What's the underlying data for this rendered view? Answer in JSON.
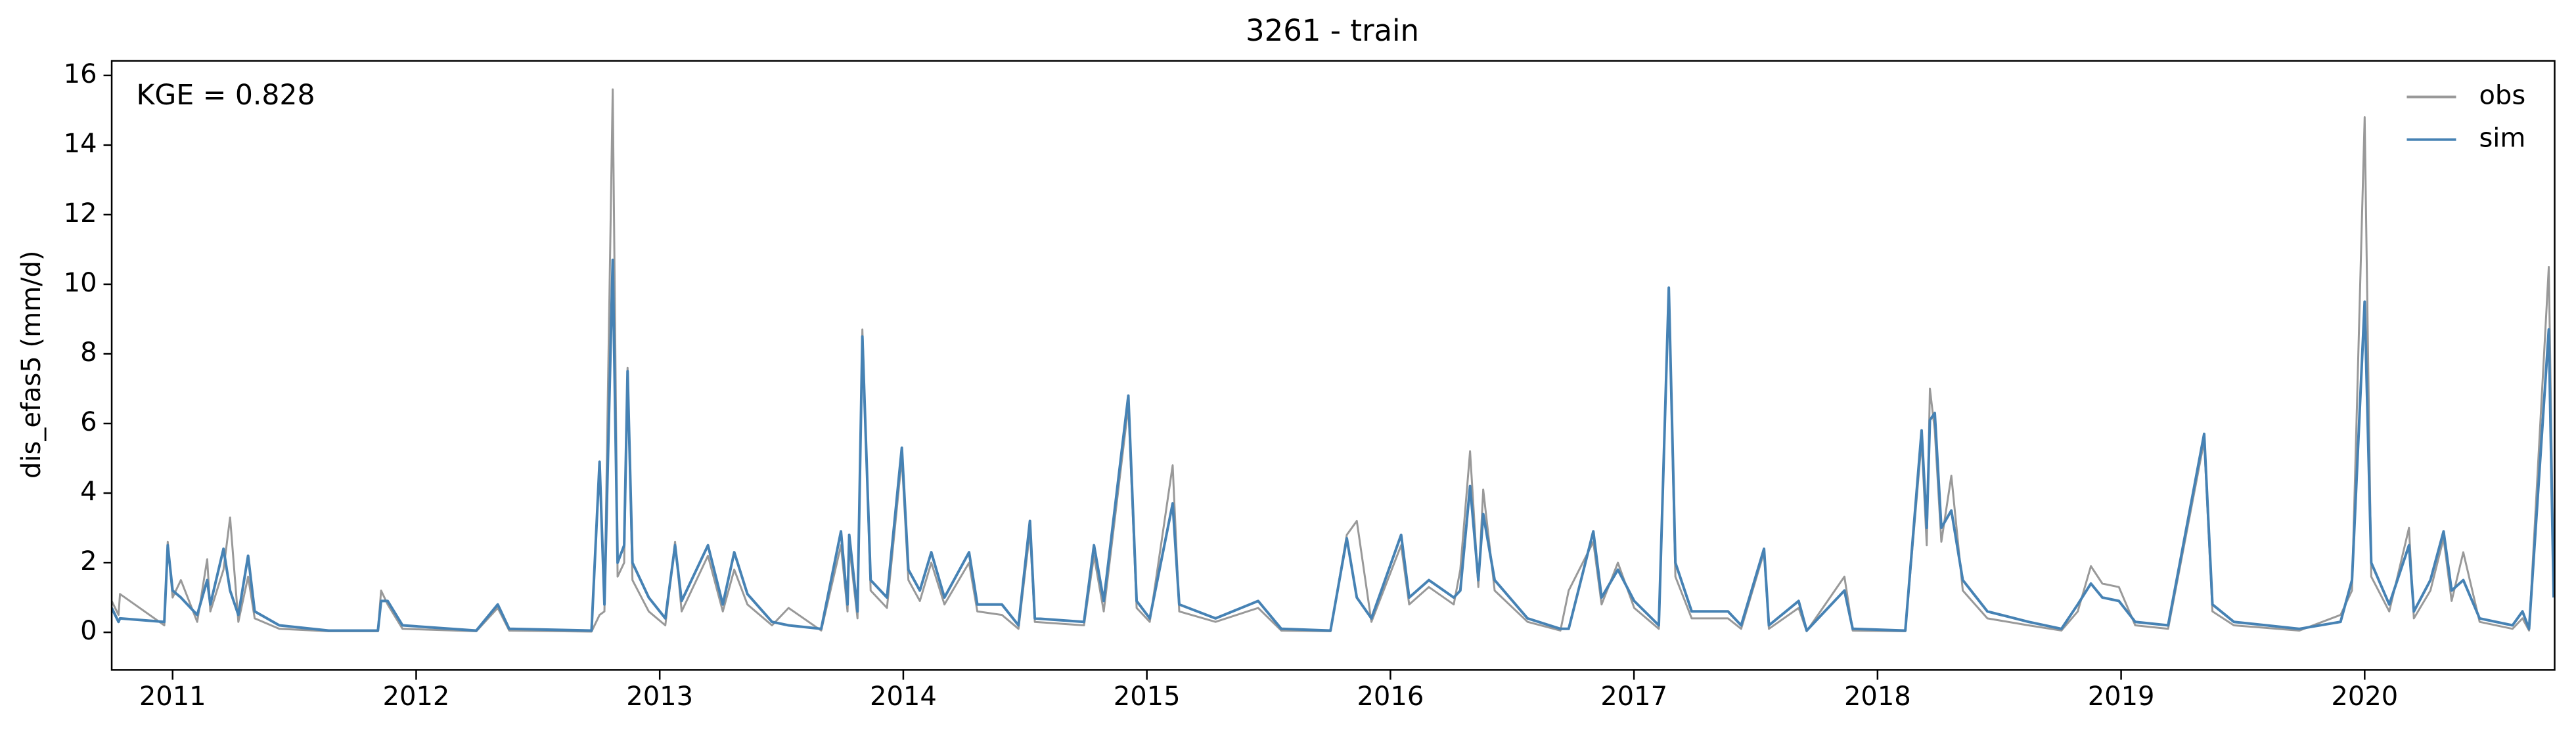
{
  "chart_data": {
    "type": "line",
    "title": "3261 - train",
    "ylabel": "dis_efas5 (mm/d)",
    "annotation": "KGE = 0.828",
    "legend": "upper right",
    "grid": false,
    "xlim": [
      2010.75,
      2020.78
    ],
    "xticks": [
      2011,
      2012,
      2013,
      2014,
      2015,
      2016,
      2017,
      2018,
      2019,
      2020
    ],
    "ylim": [
      -1.08,
      16.42
    ],
    "yticks": [
      0,
      2,
      4,
      6,
      8,
      10,
      12,
      14,
      16
    ],
    "x": [
      2010.75,
      2010.778,
      2010.784,
      2010.966,
      2010.98,
      2011.0,
      2011.034,
      2011.101,
      2011.142,
      2011.155,
      2011.209,
      2011.236,
      2011.27,
      2011.31,
      2011.337,
      2011.438,
      2011.641,
      2011.843,
      2011.856,
      2011.883,
      2011.944,
      2012.247,
      2012.335,
      2012.382,
      2012.72,
      2012.753,
      2012.773,
      2012.807,
      2012.827,
      2012.854,
      2012.868,
      2012.888,
      2012.955,
      2013.023,
      2013.063,
      2013.09,
      2013.198,
      2013.259,
      2013.306,
      2013.36,
      2013.461,
      2013.529,
      2013.663,
      2013.744,
      2013.771,
      2013.778,
      2013.812,
      2013.832,
      2013.866,
      2013.933,
      2013.994,
      2014.021,
      2014.068,
      2014.115,
      2014.169,
      2014.27,
      2014.304,
      2014.405,
      2014.473,
      2014.52,
      2014.54,
      2014.742,
      2014.783,
      2014.823,
      2014.924,
      2014.958,
      2015.012,
      2015.106,
      2015.133,
      2015.282,
      2015.457,
      2015.552,
      2015.754,
      2015.821,
      2015.862,
      2015.922,
      2016.044,
      2016.077,
      2016.158,
      2016.26,
      2016.287,
      2016.327,
      2016.361,
      2016.381,
      2016.428,
      2016.563,
      2016.698,
      2016.732,
      2016.833,
      2016.867,
      2016.934,
      2017.001,
      2017.102,
      2017.143,
      2017.17,
      2017.237,
      2017.386,
      2017.44,
      2017.534,
      2017.554,
      2017.676,
      2017.709,
      2017.864,
      2017.898,
      2018.114,
      2018.181,
      2018.202,
      2018.215,
      2018.235,
      2018.262,
      2018.303,
      2018.35,
      2018.451,
      2018.62,
      2018.755,
      2018.822,
      2018.876,
      2018.923,
      2018.991,
      2019.058,
      2019.193,
      2019.341,
      2019.375,
      2019.463,
      2019.732,
      2019.901,
      2019.948,
      2020.0,
      2020.027,
      2020.101,
      2020.182,
      2020.202,
      2020.27,
      2020.324,
      2020.357,
      2020.405,
      2020.472,
      2020.607,
      2020.648,
      2020.675,
      2020.756,
      2020.776
    ],
    "series": [
      {
        "name": "obs",
        "color": "#999999",
        "values": [
          0.9,
          0.5,
          1.1,
          0.2,
          2.6,
          1.0,
          1.5,
          0.3,
          2.1,
          0.6,
          1.8,
          3.3,
          0.3,
          1.6,
          0.4,
          0.1,
          0.03,
          0.03,
          1.2,
          0.8,
          0.1,
          0.03,
          0.7,
          0.05,
          0.02,
          0.5,
          0.6,
          15.6,
          1.6,
          2.0,
          7.6,
          1.5,
          0.6,
          0.2,
          2.6,
          0.6,
          2.2,
          0.6,
          1.8,
          0.8,
          0.2,
          0.7,
          0.05,
          2.5,
          0.6,
          2.5,
          0.4,
          8.7,
          1.2,
          0.7,
          5.0,
          1.5,
          0.9,
          2.0,
          0.8,
          2.0,
          0.6,
          0.5,
          0.1,
          2.9,
          0.3,
          0.2,
          2.2,
          0.6,
          6.5,
          0.7,
          0.3,
          4.8,
          0.6,
          0.3,
          0.7,
          0.05,
          0.03,
          2.8,
          3.2,
          0.3,
          2.5,
          0.8,
          1.3,
          0.8,
          1.8,
          5.2,
          1.3,
          4.1,
          1.2,
          0.3,
          0.05,
          1.2,
          2.6,
          0.8,
          2.0,
          0.7,
          0.1,
          9.8,
          1.6,
          0.4,
          0.4,
          0.1,
          2.3,
          0.1,
          0.7,
          0.03,
          1.6,
          0.05,
          0.03,
          5.5,
          2.5,
          7.0,
          5.8,
          2.6,
          4.5,
          1.2,
          0.4,
          0.2,
          0.05,
          0.6,
          1.9,
          1.4,
          1.3,
          0.2,
          0.1,
          5.5,
          0.6,
          0.2,
          0.05,
          0.5,
          1.2,
          14.8,
          1.6,
          0.6,
          3.0,
          0.4,
          1.2,
          2.7,
          0.9,
          2.3,
          0.3,
          0.1,
          0.4,
          0.05,
          10.5,
          1.3
        ]
      },
      {
        "name": "sim",
        "color": "#4682b4",
        "values": [
          0.7,
          0.3,
          0.4,
          0.3,
          2.5,
          1.2,
          1.0,
          0.5,
          1.5,
          0.8,
          2.4,
          1.2,
          0.5,
          2.2,
          0.6,
          0.2,
          0.05,
          0.05,
          0.9,
          0.9,
          0.2,
          0.05,
          0.8,
          0.1,
          0.05,
          4.9,
          0.8,
          10.7,
          2.0,
          2.5,
          7.5,
          2.0,
          1.0,
          0.4,
          2.5,
          0.9,
          2.5,
          0.8,
          2.3,
          1.1,
          0.3,
          0.2,
          0.1,
          2.9,
          0.8,
          2.8,
          0.6,
          8.5,
          1.5,
          1.0,
          5.3,
          1.8,
          1.2,
          2.3,
          1.0,
          2.3,
          0.8,
          0.8,
          0.2,
          3.2,
          0.4,
          0.3,
          2.5,
          0.9,
          6.8,
          0.9,
          0.4,
          3.7,
          0.8,
          0.4,
          0.9,
          0.1,
          0.05,
          2.7,
          1.0,
          0.4,
          2.8,
          1.0,
          1.5,
          1.0,
          1.2,
          4.2,
          1.5,
          3.4,
          1.5,
          0.4,
          0.1,
          0.1,
          2.9,
          1.0,
          1.8,
          0.9,
          0.2,
          9.9,
          2.0,
          0.6,
          0.6,
          0.2,
          2.4,
          0.2,
          0.9,
          0.05,
          1.2,
          0.1,
          0.05,
          5.8,
          3.0,
          6.1,
          6.3,
          3.0,
          3.5,
          1.5,
          0.6,
          0.3,
          0.1,
          0.8,
          1.4,
          1.0,
          0.9,
          0.3,
          0.2,
          5.7,
          0.8,
          0.3,
          0.1,
          0.3,
          1.5,
          9.5,
          2.0,
          0.8,
          2.5,
          0.6,
          1.5,
          2.9,
          1.2,
          1.5,
          0.4,
          0.2,
          0.6,
          0.1,
          8.7,
          1.0
        ]
      }
    ]
  }
}
